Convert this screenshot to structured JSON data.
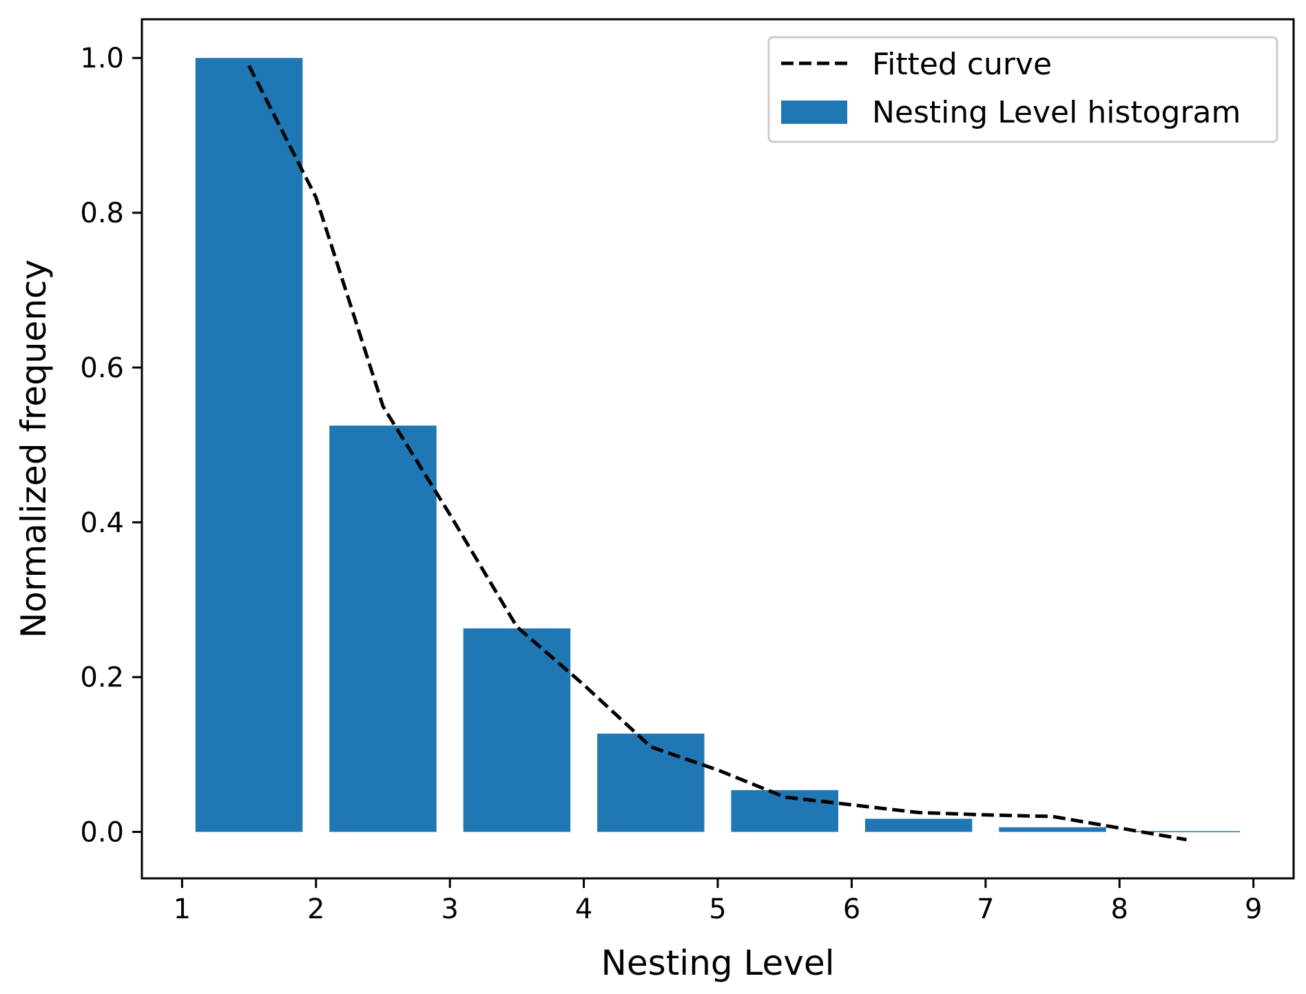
{
  "chart_data": {
    "type": "bar",
    "title": "",
    "xlabel": "Nesting Level",
    "ylabel": "Normalized frequency",
    "xlim": [
      0.7,
      9.3
    ],
    "ylim": [
      -0.06,
      1.05
    ],
    "xticks": [
      1,
      2,
      3,
      4,
      5,
      6,
      7,
      8,
      9
    ],
    "yticks": [
      0.0,
      0.2,
      0.4,
      0.6,
      0.8,
      1.0
    ],
    "ytick_labels": [
      "0.0",
      "0.2",
      "0.4",
      "0.6",
      "0.8",
      "1.0"
    ],
    "grid": false,
    "legend_position": "top-right",
    "bar_width": 0.8,
    "bar_color": "#1f77b4",
    "bars": {
      "name": "Nesting Level histogram",
      "x": [
        1.5,
        2.5,
        3.5,
        4.5,
        5.5,
        6.5,
        7.5,
        8.5
      ],
      "values": [
        1.0,
        0.525,
        0.263,
        0.127,
        0.054,
        0.017,
        0.006,
        0.001
      ]
    },
    "curve": {
      "name": "Fitted curve",
      "color": "#000000",
      "style": "dashed",
      "x": [
        1.5,
        2.0,
        2.5,
        3.0,
        3.5,
        4.0,
        4.5,
        5.0,
        5.5,
        6.0,
        6.5,
        7.0,
        7.5,
        8.0,
        8.5
      ],
      "y": [
        0.99,
        0.82,
        0.55,
        0.41,
        0.265,
        0.19,
        0.11,
        0.08,
        0.045,
        0.035,
        0.025,
        0.022,
        0.02,
        0.005,
        -0.01
      ]
    }
  }
}
